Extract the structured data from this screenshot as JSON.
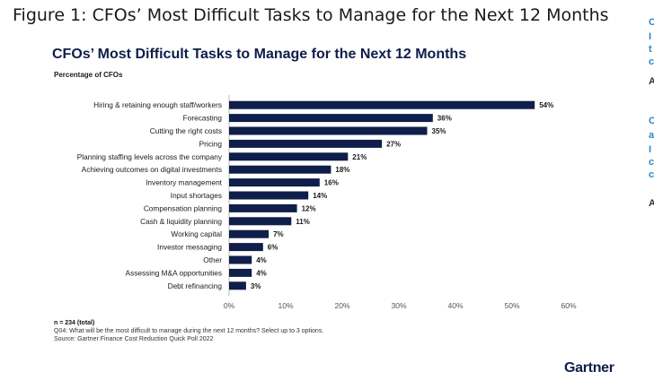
{
  "page": {
    "figure_title": "Figure 1: CFOs’ Most Difficult Tasks to Manage for the Next 12 Months",
    "brand": "Gartner",
    "edge_glyphs": [
      {
        "text": "C",
        "color": "#2a86c8"
      },
      {
        "text": "I",
        "color": "#2a86c8"
      },
      {
        "text": "t",
        "color": "#2a86c8"
      },
      {
        "text": "c",
        "color": "#2a86c8"
      },
      {
        "text": "A",
        "color": "#333333"
      },
      {
        "text": "C",
        "color": "#2a86c8"
      },
      {
        "text": "a",
        "color": "#2a86c8"
      },
      {
        "text": "I",
        "color": "#2a86c8"
      },
      {
        "text": "c",
        "color": "#2a86c8"
      },
      {
        "text": "c",
        "color": "#2a86c8"
      },
      {
        "text": "A",
        "color": "#333333"
      }
    ]
  },
  "footnotes": {
    "n": "n = 234 (total)",
    "question": "Q04: What will be the most difficult to manage during the next 12 months? Select up to 3 options.",
    "source": "Source: Gartner Finance Cost Reduction Quick Poll 2022"
  },
  "chart_data": {
    "type": "bar",
    "orientation": "horizontal",
    "title": "CFOs’ Most Difficult Tasks to Manage for the Next 12 Months",
    "subtitle": "Percentage of CFOs",
    "xlabel": "",
    "ylabel": "",
    "categories": [
      "Hiring & retaining enough staff/workers",
      "Forecasting",
      "Cutting the right costs",
      "Pricing",
      "Planning staffing levels across the company",
      "Achieving outcomes on digital investments",
      "Inventory management",
      "Input shortages",
      "Compensation planning",
      "Cash & liquidity planning",
      "Working capital",
      "Investor messaging",
      "Other",
      "Assessing M&A opportunities",
      "Debt refinancing"
    ],
    "values": [
      54,
      36,
      35,
      27,
      21,
      18,
      16,
      14,
      12,
      11,
      7,
      6,
      4,
      4,
      3
    ],
    "data_labels": [
      "54%",
      "36%",
      "35%",
      "27%",
      "21%",
      "18%",
      "16%",
      "14%",
      "12%",
      "11%",
      "7%",
      "6%",
      "4%",
      "4%",
      "3%"
    ],
    "xlim": [
      0,
      60
    ],
    "xticks": [
      0,
      10,
      20,
      30,
      40,
      50,
      60
    ],
    "xtick_labels": [
      "0%",
      "10%",
      "20%",
      "30%",
      "40%",
      "50%",
      "60%"
    ],
    "grid": false,
    "legend": "none",
    "bar_color": "#0f1e4a"
  }
}
